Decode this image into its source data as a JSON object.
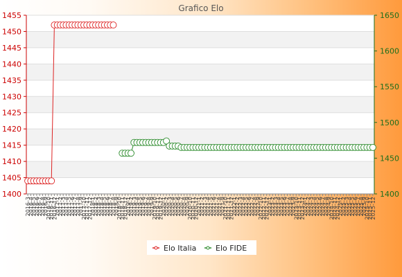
{
  "chart_data": {
    "type": "line",
    "title": "Grafico Elo",
    "x_labels": [
      "2016-3",
      "2016-4",
      "2016-5",
      "2016-6",
      "2016-7",
      "2016-8",
      "2016-9",
      "2016-10",
      "2016-11",
      "2016-12",
      "2017-1",
      "2017-2",
      "2017-3",
      "2017-4",
      "2017-5",
      "2017-6",
      "2017-7",
      "2017-8",
      "2017-9",
      "2017-10",
      "2017-11",
      "2017-12",
      "2018-1",
      "2018-2",
      "2018-3",
      "2018-4",
      "2018-5",
      "2018-6",
      "2018-7",
      "2018-8",
      "2018-9",
      "2018-10",
      "2018-11",
      "2018-12",
      "2019-1",
      "2019-2",
      "2019-3",
      "2019-4",
      "2019-5",
      "2019-6",
      "2019-7",
      "2019-8",
      "2019-9",
      "2019-10",
      "2019-11",
      "2019-12",
      "2020-1",
      "2020-2",
      "2020-3",
      "2020-4",
      "2020-5",
      "2020-6",
      "2020-7",
      "2020-8",
      "2020-9",
      "2020-10",
      "2020-11",
      "2020-12",
      "2021-1",
      "2021-2",
      "2021-3",
      "2021-4",
      "2021-5",
      "2021-6",
      "2021-7",
      "2021-8",
      "2021-9",
      "2021-10",
      "2021-11",
      "2021-12",
      "2022-1",
      "2022-2",
      "2022-3",
      "2022-4",
      "2022-5",
      "2022-6",
      "2022-7",
      "2022-8",
      "2022-9",
      "2022-10",
      "2022-11",
      "2022-12",
      "2023-1",
      "2023-2",
      "2023-3",
      "2023-4",
      "2023-5",
      "2023-6",
      "2023-7",
      "2023-8",
      "2023-9",
      "2023-10",
      "2023-11",
      "2023-12",
      "2024-1",
      "2024-2",
      "2024-3",
      "2024-4",
      "2024-5",
      "2024-6",
      "2024-7",
      "2024-8",
      "2024-9",
      "2024-10",
      "2024-11",
      "2024-12",
      "2025-1",
      "2025-2",
      "2025-3",
      "2025-4",
      "2025-5",
      "2025-6",
      "2025-7",
      "2025-8",
      "2025-9",
      "2025-10",
      "2025-11",
      "2025-12"
    ],
    "left_axis": {
      "min": 1400,
      "max": 1455,
      "step": 5,
      "color": "#cc0000"
    },
    "right_axis": {
      "min": 1400,
      "max": 1650,
      "step": 50,
      "color": "#1b6e1b"
    },
    "grid": true,
    "legend_position": "bottom-center",
    "series": [
      {
        "name": "Elo Italia",
        "axis": "left",
        "color": "#dd2222",
        "values": [
          1404,
          1404,
          1404,
          1404,
          1404,
          1404,
          1404,
          1404,
          1404,
          1452,
          1452,
          1452,
          1452,
          1452,
          1452,
          1452,
          1452,
          1452,
          1452,
          1452,
          1452,
          1452,
          1452,
          1452,
          1452,
          1452,
          1452,
          1452,
          1452,
          1452,
          null,
          null,
          null,
          null,
          null,
          null,
          null,
          null,
          null,
          null,
          null,
          null,
          null,
          null,
          null,
          null,
          null,
          null,
          null,
          null,
          null,
          null,
          null,
          null,
          null,
          null,
          null,
          null,
          null,
          null,
          null,
          null,
          null,
          null,
          null,
          null,
          null,
          null,
          null,
          null,
          null,
          null,
          null,
          null,
          null,
          null,
          null,
          null,
          null,
          null,
          null,
          null,
          null,
          null,
          null,
          null,
          null,
          null,
          null,
          null,
          null,
          null,
          null,
          null,
          null,
          null,
          null,
          null,
          null,
          null,
          null,
          null,
          null,
          null,
          null,
          null,
          null,
          null,
          null,
          null,
          null,
          null,
          null,
          null,
          null,
          null,
          null,
          null
        ]
      },
      {
        "name": "Elo FIDE",
        "axis": "right",
        "color": "#2a8a2a",
        "values": [
          null,
          null,
          null,
          null,
          null,
          null,
          null,
          null,
          null,
          null,
          null,
          null,
          null,
          null,
          null,
          null,
          null,
          null,
          null,
          null,
          null,
          null,
          null,
          null,
          null,
          null,
          null,
          null,
          null,
          null,
          null,
          null,
          1457,
          1457,
          1457,
          1457,
          1472,
          1472,
          1472,
          1472,
          1472,
          1472,
          1472,
          1472,
          1472,
          1472,
          1472,
          1474,
          1467,
          1467,
          1467,
          1467,
          1465,
          1465,
          1465,
          1465,
          1465,
          1465,
          1465,
          1465,
          1465,
          1465,
          1465,
          1465,
          1465,
          1465,
          1465,
          1465,
          1465,
          1465,
          1465,
          1465,
          1465,
          1465,
          1465,
          1465,
          1465,
          1465,
          1465,
          1465,
          1465,
          1465,
          1465,
          1465,
          1465,
          1465,
          1465,
          1465,
          1465,
          1465,
          1465,
          1465,
          1465,
          1465,
          1465,
          1465,
          1465,
          1465,
          1465,
          1465,
          1465,
          1465,
          1465,
          1465,
          1465,
          1465,
          1465,
          1465,
          1465,
          1465,
          1465,
          1465,
          1465,
          1465,
          1465,
          1465,
          1465,
          1465
        ]
      }
    ]
  }
}
